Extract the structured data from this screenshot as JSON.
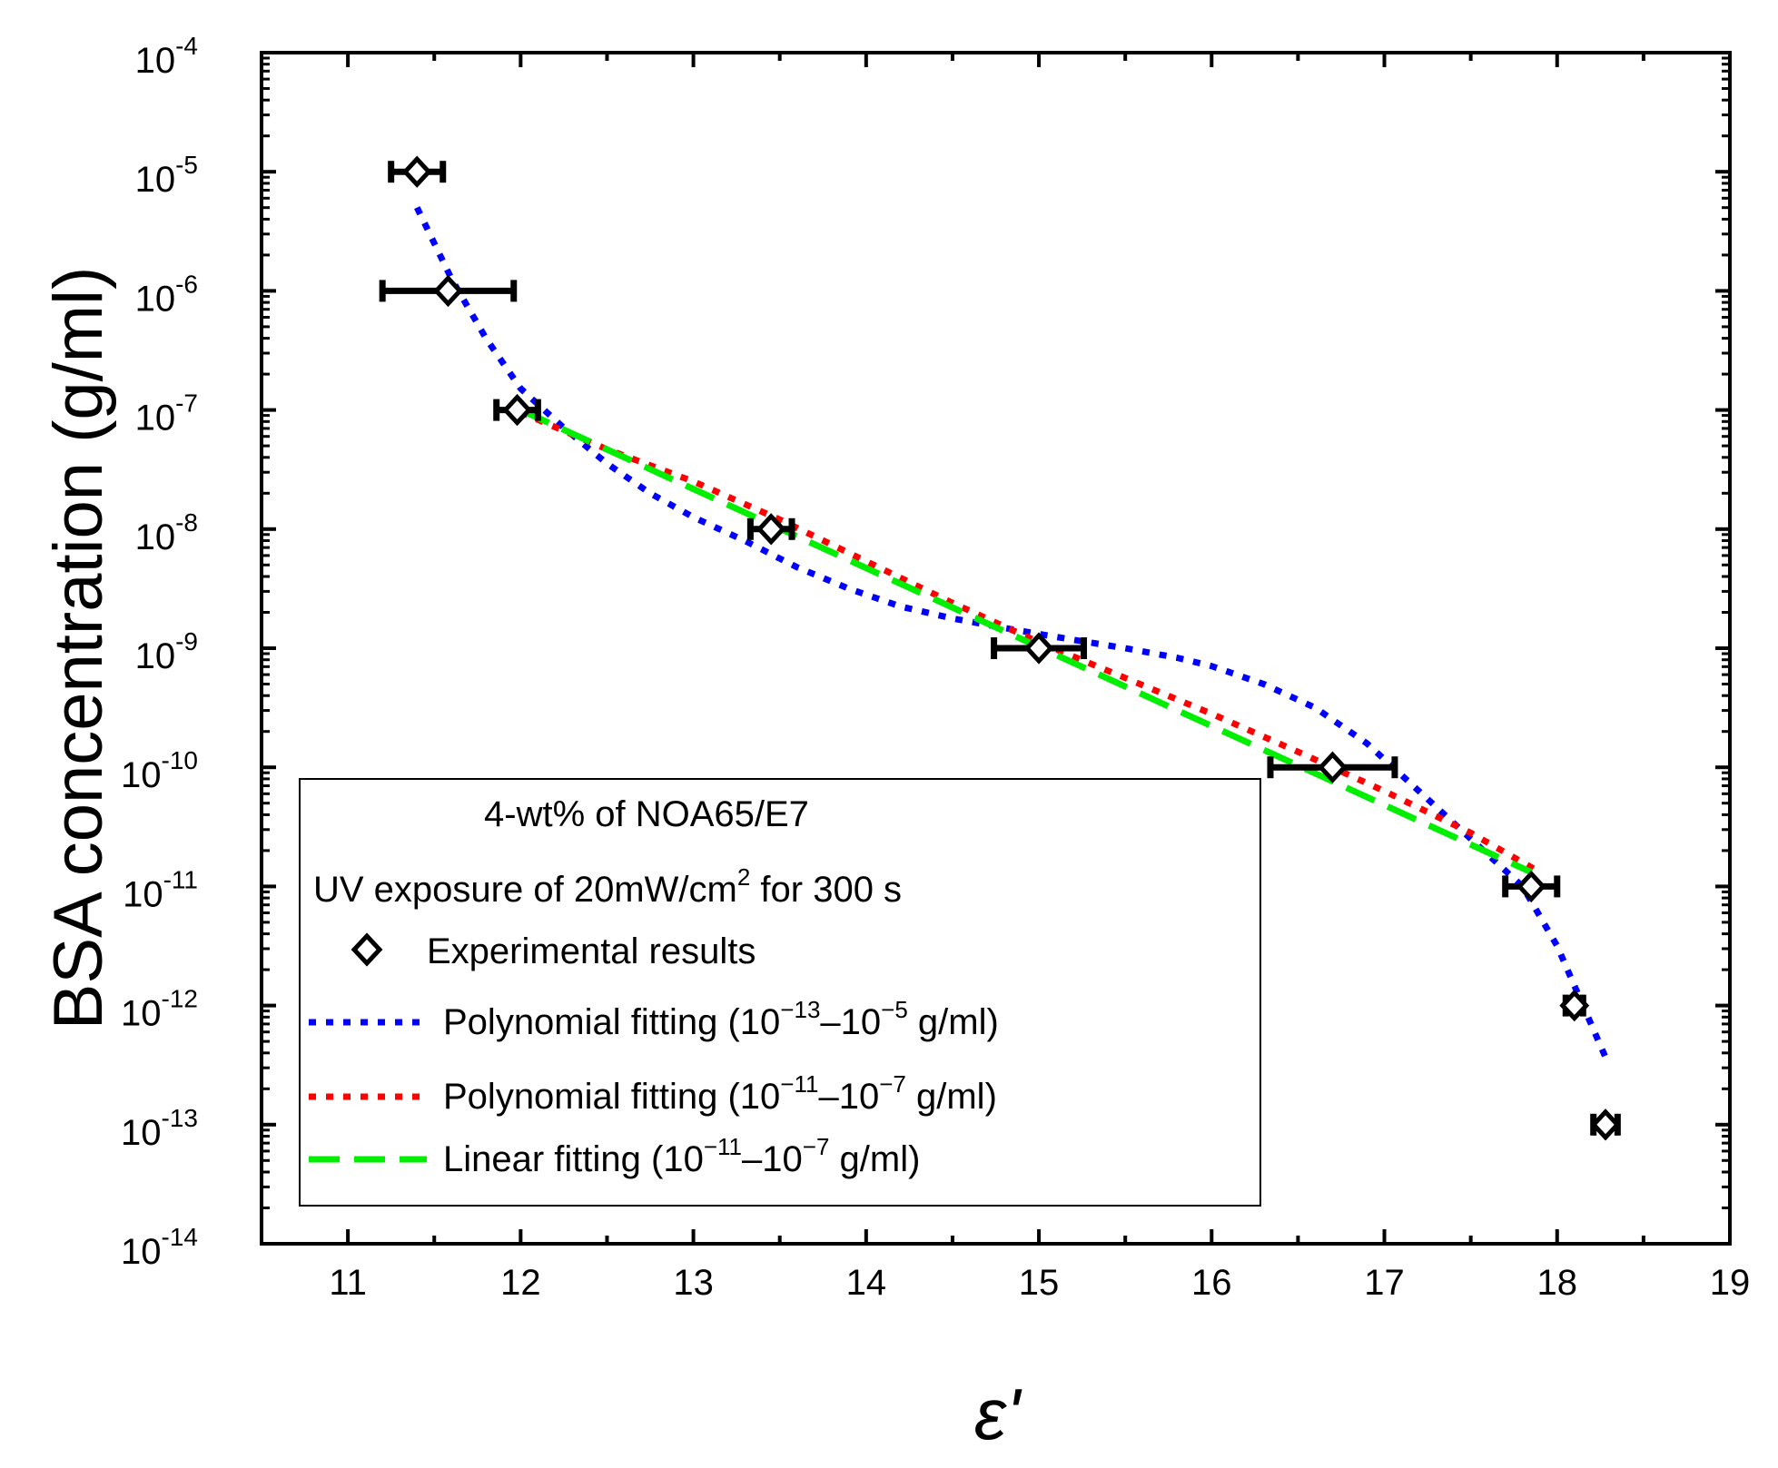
{
  "chart_data": {
    "type": "scatter",
    "title": "",
    "xlabel": "ε'",
    "ylabel": "BSA concentration (g/ml)",
    "xlim": [
      10.5,
      19
    ],
    "ylim_log10": [
      -14,
      -4
    ],
    "y_scale": "log",
    "x_ticks": [
      11,
      12,
      13,
      14,
      15,
      16,
      17,
      18,
      19
    ],
    "y_ticks": [
      {
        "base": "10",
        "exp": "-4",
        "log": -4
      },
      {
        "base": "10",
        "exp": "-5",
        "log": -5
      },
      {
        "base": "10",
        "exp": "-6",
        "log": -6
      },
      {
        "base": "10",
        "exp": "-7",
        "log": -7
      },
      {
        "base": "10",
        "exp": "-8",
        "log": -8
      },
      {
        "base": "10",
        "exp": "-9",
        "log": -9
      },
      {
        "base": "10",
        "exp": "-10",
        "log": -10
      },
      {
        "base": "10",
        "exp": "-11",
        "log": -11
      },
      {
        "base": "10",
        "exp": "-12",
        "log": -12
      },
      {
        "base": "10",
        "exp": "-13",
        "log": -13
      },
      {
        "base": "10",
        "exp": "-14",
        "log": -14
      }
    ],
    "legend_position": "bottom-left",
    "legend_title_1": "4-wt% of NOA65/E7",
    "legend_title_2": {
      "pre": "UV exposure of 20mW/cm",
      "sup": "2",
      "post": " for 300 s"
    },
    "experimental": {
      "name": "Experimental results",
      "color": "#000000",
      "points": [
        {
          "x": 11.4,
          "log_y": -5,
          "xerr_low": 0.15,
          "xerr_high": 0.15
        },
        {
          "x": 11.58,
          "log_y": -6,
          "xerr_low": 0.38,
          "xerr_high": 0.38
        },
        {
          "x": 11.98,
          "log_y": -7,
          "xerr_low": 0.12,
          "xerr_high": 0.12
        },
        {
          "x": 13.45,
          "log_y": -8,
          "xerr_low": 0.12,
          "xerr_high": 0.12
        },
        {
          "x": 15.0,
          "log_y": -9,
          "xerr_low": 0.26,
          "xerr_high": 0.26
        },
        {
          "x": 16.7,
          "log_y": -10,
          "xerr_low": 0.36,
          "xerr_high": 0.36
        },
        {
          "x": 17.85,
          "log_y": -11,
          "xerr_low": 0.15,
          "xerr_high": 0.15
        },
        {
          "x": 18.1,
          "log_y": -12,
          "xerr_low": 0.05,
          "xerr_high": 0.05
        },
        {
          "x": 18.28,
          "log_y": -13,
          "xerr_low": 0.07,
          "xerr_high": 0.07
        }
      ]
    },
    "series": [
      {
        "name": "Polynomial fitting (10−13–10−5 g/ml)",
        "legend_pre": "Polynomial fitting (10",
        "legend_exp1": "−13",
        "legend_mid": "–10",
        "legend_exp2": "−5",
        "legend_post": " g/ml)",
        "color": "#0000ff",
        "style": "dotted",
        "points": [
          [
            11.4,
            -5.3
          ],
          [
            11.6,
            -5.9
          ],
          [
            11.8,
            -6.4
          ],
          [
            12.0,
            -6.82
          ],
          [
            12.25,
            -7.15
          ],
          [
            12.5,
            -7.45
          ],
          [
            12.75,
            -7.7
          ],
          [
            13.0,
            -7.9
          ],
          [
            13.3,
            -8.1
          ],
          [
            13.6,
            -8.32
          ],
          [
            13.9,
            -8.5
          ],
          [
            14.2,
            -8.65
          ],
          [
            14.5,
            -8.75
          ],
          [
            14.8,
            -8.83
          ],
          [
            15.0,
            -8.88
          ],
          [
            15.2,
            -8.93
          ],
          [
            15.5,
            -9.0
          ],
          [
            15.8,
            -9.08
          ],
          [
            16.0,
            -9.15
          ],
          [
            16.3,
            -9.3
          ],
          [
            16.6,
            -9.5
          ],
          [
            16.9,
            -9.8
          ],
          [
            17.2,
            -10.2
          ],
          [
            17.5,
            -10.6
          ],
          [
            17.8,
            -11.0
          ],
          [
            18.0,
            -11.5
          ],
          [
            18.15,
            -12.0
          ],
          [
            18.3,
            -12.5
          ]
        ]
      },
      {
        "name": "Polynomial fitting (10−11–10−7 g/ml)",
        "legend_pre": "Polynomial fitting (10",
        "legend_exp1": "−11",
        "legend_mid": "–10",
        "legend_exp2": "−7",
        "legend_post": " g/ml)",
        "color": "#ff0000",
        "style": "dotted",
        "points": [
          [
            12.0,
            -7.02
          ],
          [
            12.5,
            -7.33
          ],
          [
            13.0,
            -7.6
          ],
          [
            13.5,
            -7.92
          ],
          [
            14.0,
            -8.27
          ],
          [
            14.5,
            -8.62
          ],
          [
            15.0,
            -8.95
          ],
          [
            15.5,
            -9.25
          ],
          [
            16.0,
            -9.55
          ],
          [
            16.5,
            -9.87
          ],
          [
            17.0,
            -10.2
          ],
          [
            17.5,
            -10.55
          ],
          [
            17.9,
            -10.88
          ]
        ]
      },
      {
        "name": "Linear fitting (10−11–10−7 g/ml)",
        "legend_pre": "Linear fitting (10",
        "legend_exp1": "−11",
        "legend_mid": "–10",
        "legend_exp2": "−7",
        "legend_post": " g/ml)",
        "color": "#00ee00",
        "style": "dashed",
        "points": [
          [
            12.0,
            -7.0
          ],
          [
            17.85,
            -10.88
          ]
        ]
      }
    ]
  }
}
